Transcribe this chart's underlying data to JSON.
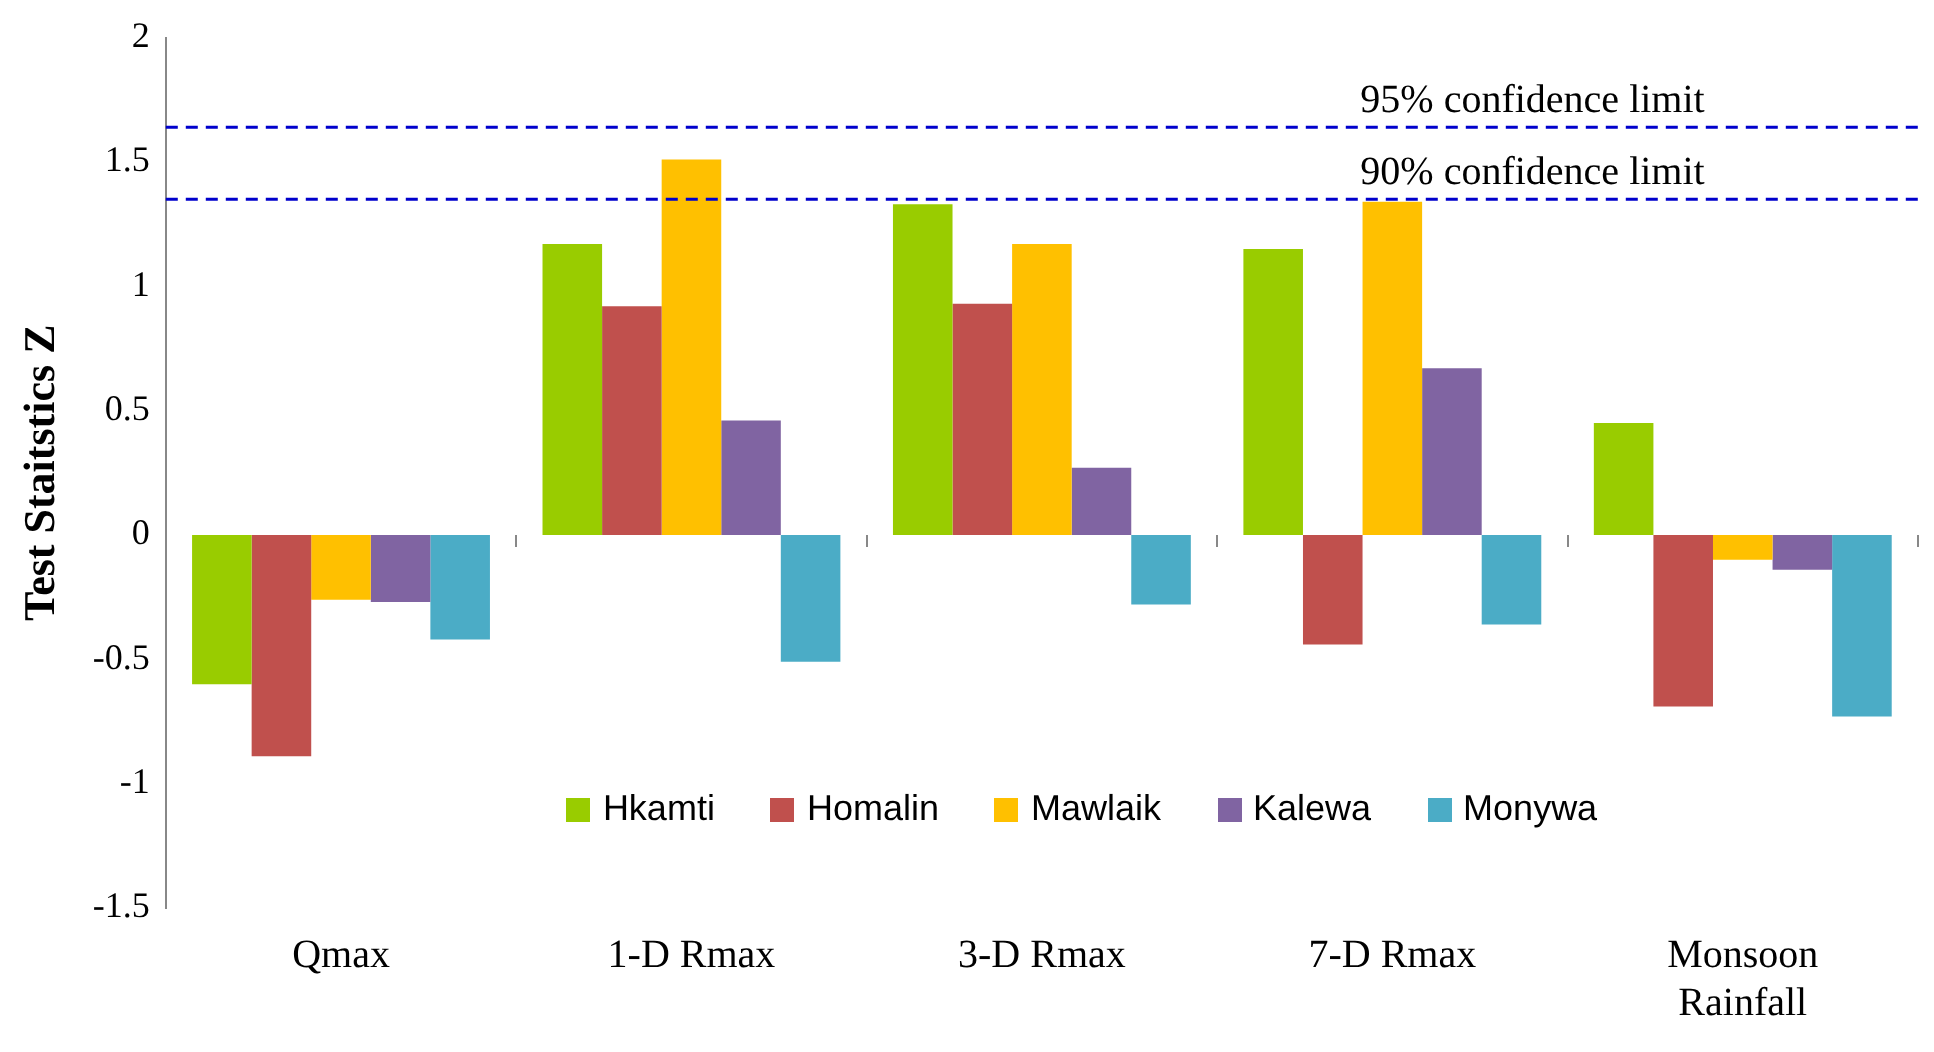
{
  "chart_data": {
    "type": "bar",
    "ylabel": "Test Staitstics Z",
    "categories": [
      "Qmax",
      "1-D Rmax",
      "3-D Rmax",
      "7-D Rmax",
      "Monsoon Rainfall"
    ],
    "series": [
      {
        "name": "Hkamti",
        "color": "#99cc00",
        "values": [
          -0.6,
          1.17,
          1.33,
          1.15,
          0.45
        ]
      },
      {
        "name": "Homalin",
        "color": "#c0504d",
        "values": [
          -0.89,
          0.92,
          0.93,
          -0.44,
          -0.69
        ]
      },
      {
        "name": "Mawlaik",
        "color": "#ffc000",
        "values": [
          -0.26,
          1.51,
          1.17,
          1.34,
          -0.1
        ]
      },
      {
        "name": "Kalewa",
        "color": "#8064a2",
        "values": [
          -0.27,
          0.46,
          0.27,
          0.67,
          -0.14
        ]
      },
      {
        "name": "Monywa",
        "color": "#4bacc6",
        "values": [
          -0.42,
          -0.51,
          -0.28,
          -0.36,
          -0.73
        ]
      }
    ],
    "ylim": [
      -1.5,
      2
    ],
    "yticks": [
      -1.5,
      -1,
      -0.5,
      0,
      0.5,
      1,
      1.5,
      2
    ],
    "ref_lines": [
      {
        "axis": "y",
        "value": 1.64,
        "label": "95% confidence limit",
        "color": "#0000cc",
        "line_style": "dashed"
      },
      {
        "axis": "y",
        "value": 1.35,
        "label": "90% confidence limit",
        "color": "#0000cc",
        "line_style": "dashed"
      }
    ],
    "grid": false,
    "legend": "bottom"
  }
}
